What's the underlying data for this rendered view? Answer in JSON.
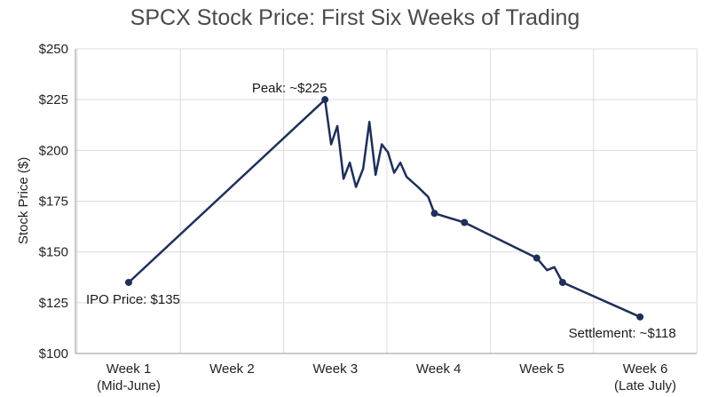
{
  "chart_data": {
    "type": "line",
    "title": "SPCX Stock Price: First Six Weeks of Trading",
    "xlabel": "",
    "ylabel": "Stock Price ($)",
    "ylim": [
      100,
      250
    ],
    "xlim": [
      1,
      6
    ],
    "grid": true,
    "line_color": "#1f2f5a",
    "x_ticks": [
      {
        "value": 1,
        "line1": "Week 1",
        "line2": "(Mid-June)"
      },
      {
        "value": 2,
        "line1": "Week 2",
        "line2": ""
      },
      {
        "value": 3,
        "line1": "Week 3",
        "line2": ""
      },
      {
        "value": 4,
        "line1": "Week 4",
        "line2": ""
      },
      {
        "value": 5,
        "line1": "Week 5",
        "line2": ""
      },
      {
        "value": 6,
        "line1": "Week 6",
        "line2": "(Late July)"
      }
    ],
    "y_ticks": [
      {
        "value": 100,
        "label": "$100"
      },
      {
        "value": 125,
        "label": "$125"
      },
      {
        "value": 150,
        "label": "$150"
      },
      {
        "value": 175,
        "label": "$175"
      },
      {
        "value": 200,
        "label": "$200"
      },
      {
        "value": 225,
        "label": "$225"
      },
      {
        "value": 250,
        "label": "$250"
      }
    ],
    "series": [
      {
        "points": [
          {
            "x": 1.0,
            "y": 135,
            "marker": true
          },
          {
            "x": 2.9,
            "y": 225,
            "marker": true
          },
          {
            "x": 2.96,
            "y": 203
          },
          {
            "x": 3.02,
            "y": 212
          },
          {
            "x": 3.08,
            "y": 186
          },
          {
            "x": 3.14,
            "y": 194
          },
          {
            "x": 3.2,
            "y": 182
          },
          {
            "x": 3.27,
            "y": 191
          },
          {
            "x": 3.33,
            "y": 214
          },
          {
            "x": 3.39,
            "y": 188
          },
          {
            "x": 3.45,
            "y": 203
          },
          {
            "x": 3.51,
            "y": 199
          },
          {
            "x": 3.57,
            "y": 189
          },
          {
            "x": 3.63,
            "y": 194
          },
          {
            "x": 3.69,
            "y": 187
          },
          {
            "x": 3.8,
            "y": 182
          },
          {
            "x": 3.9,
            "y": 177
          },
          {
            "x": 3.96,
            "y": 169,
            "marker": true
          },
          {
            "x": 4.25,
            "y": 164.5,
            "marker": true
          },
          {
            "x": 4.95,
            "y": 147,
            "marker": true
          },
          {
            "x": 5.05,
            "y": 141
          },
          {
            "x": 5.12,
            "y": 142.5
          },
          {
            "x": 5.2,
            "y": 135,
            "marker": true
          },
          {
            "x": 5.95,
            "y": 118,
            "marker": true
          }
        ]
      }
    ],
    "annotations": [
      {
        "text": "IPO Price: $135",
        "x": 1.0,
        "y": 135,
        "position": "below-right"
      },
      {
        "text": "Peak: ~$225",
        "x": 2.9,
        "y": 225,
        "position": "above-left"
      },
      {
        "text": "Settlement: ~$118",
        "x": 5.95,
        "y": 118,
        "position": "below"
      }
    ]
  }
}
